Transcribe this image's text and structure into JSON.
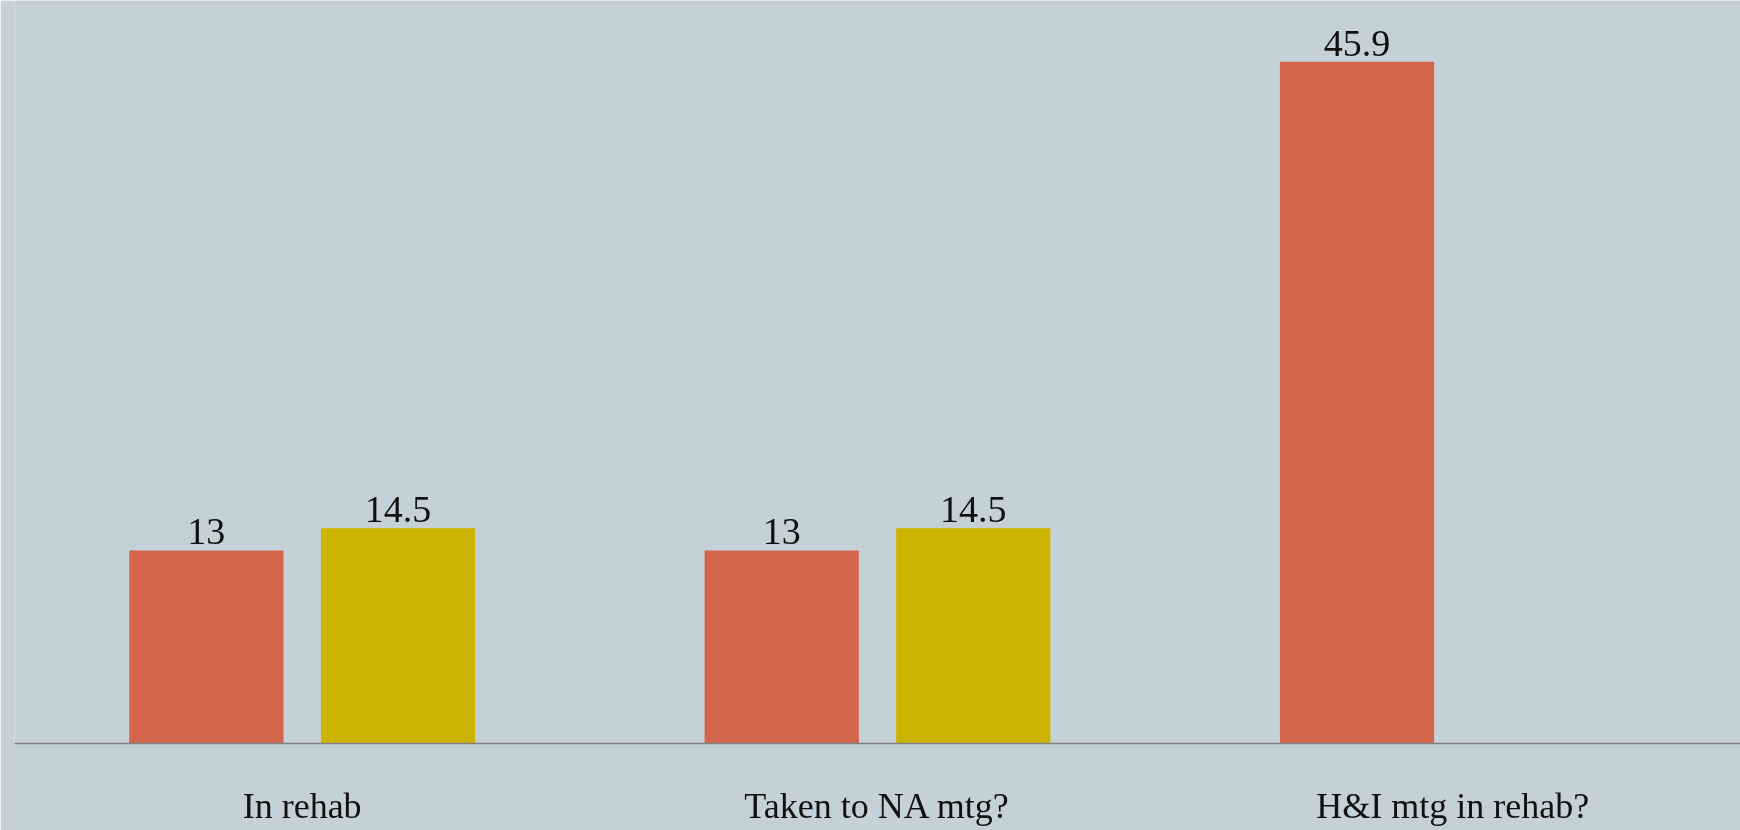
{
  "chart_data": {
    "type": "bar",
    "categories": [
      "In rehab",
      "Taken to NA mtg?",
      "H&I mtg in rehab?"
    ],
    "series": [
      {
        "color": "#d2654a",
        "values": [
          13,
          13,
          45.9
        ]
      },
      {
        "color": "#ccb400",
        "values": [
          14.5,
          14.5,
          null
        ]
      }
    ],
    "data_labels": true,
    "grid": false
  }
}
